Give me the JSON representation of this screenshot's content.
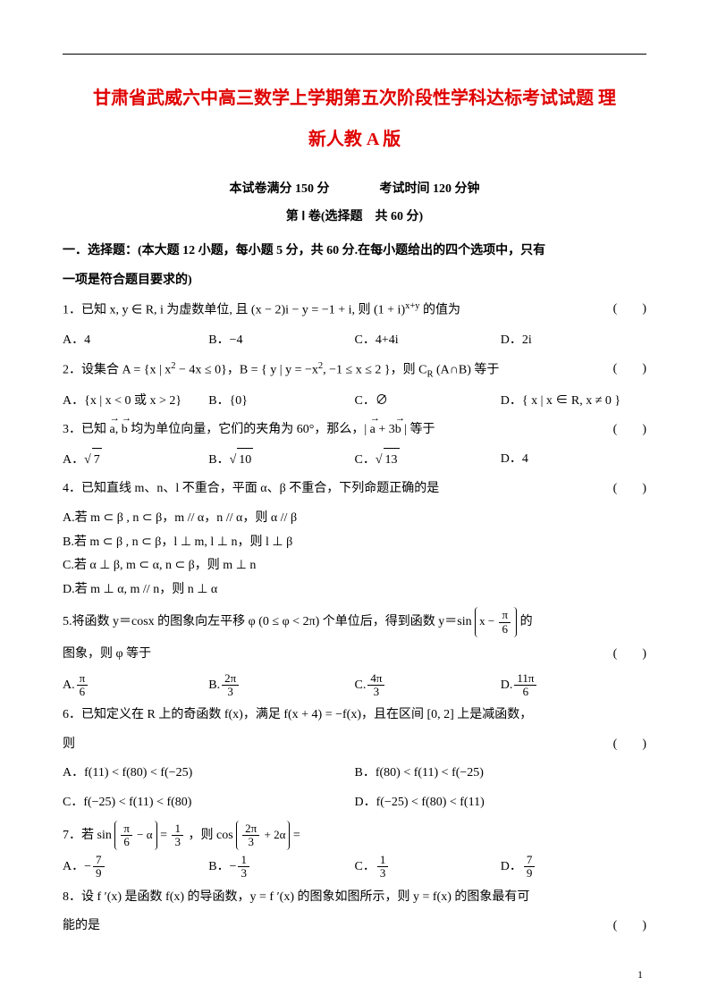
{
  "title": "甘肃省武威六中高三数学上学期第五次阶段性学科达标考试试题 理",
  "subtitle": "新人教 A 版",
  "info": "本试卷满分 150 分　　　　考试时间 120 分钟",
  "part": "第 Ⅰ 卷(选择题　共 60 分)",
  "sectionHeading1": "一．选择题：(本大题 12 小题，每小题 5 分，共 60 分.在每小题给出的四个选项中，只有",
  "sectionHeading2": "一项是符合题目要求的)",
  "paren": "(　　)",
  "q1_stem": "1．已知 x, y ∈ R, i 为虚数单位, 且 (x − 2)i − y = −1 + i, 则 (1 + i)",
  "q1_exp": "x+y",
  "q1_stem_after": " 的值为",
  "q1_A": "A．4",
  "q1_B": "B．−4",
  "q1_C": "C．4+4i",
  "q1_D": "D．2i",
  "q2_stem_a": "2．设集合 A = {x | x",
  "q2_stem_b": " − 4x ≤ 0}，B = { y | y = −x",
  "q2_stem_c": ", −1 ≤ x ≤ 2 }，则 C",
  "q2_sub": "R",
  "q2_stem_d": " (A∩B) 等于",
  "q2_A": "A．{x | x < 0 或 x > 2}",
  "q2_B": "B．{0}",
  "q2_C": "C．∅",
  "q2_D_a": "D．{ x | x ∈ R, x ≠ 0 }",
  "q3_stem_a": "3．已知 ",
  "q3_vec_a": "a",
  "q3_stem_b": ", ",
  "q3_vec_b": "b",
  "q3_stem_c": " 均为单位向量，它们的夹角为 60°，那么，| ",
  "q3_vec_a2": "a",
  "q3_stem_d": " + 3",
  "q3_vec_b2": "b",
  "q3_stem_e": " | 等于",
  "q3_A_pre": "A．√",
  "q3_A_val": "7",
  "q3_B_pre": "B．√",
  "q3_B_val": "10",
  "q3_C_pre": "C．√",
  "q3_C_val": "13",
  "q3_D": "D．4",
  "q4_stem": "4．已知直线 m、n、l 不重合，平面 α、β 不重合，下列命题正确的是",
  "q4_A": "A.若 m ⊂ β , n ⊂ β，m // α，n // α，则 α // β",
  "q4_B": "B.若 m ⊂ β , n ⊂ β，l ⊥ m, l ⊥ n，则 l ⊥ β",
  "q4_C": "C.若 α ⊥ β, m ⊂ α, n ⊂ β，则 m ⊥ n",
  "q4_D": "D.若 m ⊥ α, m // n，则 n ⊥ α",
  "q5_stem_a": "5.将函数 y＝cosx 的图象向左平移 φ (0 ≤ φ < 2π) 个单位后，得到函数 y＝sin",
  "q5_box_top": "x − ",
  "q5_box_num": "π",
  "q5_box_den": "6",
  "q5_stem_b": "的",
  "q5_line2": "图象，则 φ 等于",
  "q5_A_pre": "A.",
  "q5_A_num": "π",
  "q5_A_den": "6",
  "q5_B_pre": "B.",
  "q5_B_num": "2π",
  "q5_B_den": "3",
  "q5_C_pre": "C.",
  "q5_C_num": "4π",
  "q5_C_den": "3",
  "q5_D_pre": "D.",
  "q5_D_num": "11π",
  "q5_D_den": "6",
  "q6_stem": "6．已知定义在 R 上的奇函数 f(x)，满足 f(x + 4) = −f(x)，且在区间 [0, 2] 上是减函数，",
  "q6_line2": "则",
  "q6_A": "A．f(11) < f(80) < f(−25)",
  "q6_B": "B．f(80) < f(11) < f(−25)",
  "q6_C": "C．f(−25) < f(11) < f(80)",
  "q6_D": "D．f(−25) < f(80) < f(11)",
  "q7_pre": "7．若 sin",
  "q7_lp_num": "π",
  "q7_lp_den": "6",
  "q7_mid1": " − α",
  "q7_eq": " = ",
  "q7_rhs_num": "1",
  "q7_rhs_den": "3",
  "q7_mid2": "，则 cos",
  "q7_rp_num": "2π",
  "q7_rp_den": "3",
  "q7_mid3": " + 2α",
  "q7_end": " =",
  "q7_A_pre": "A．−",
  "q7_A_num": "7",
  "q7_A_den": "9",
  "q7_B_pre": "B．−",
  "q7_B_num": "1",
  "q7_B_den": "3",
  "q7_C_pre": "C．",
  "q7_C_num": "1",
  "q7_C_den": "3",
  "q7_D_pre": "D．",
  "q7_D_num": "7",
  "q7_D_den": "9",
  "q8_stem": "8．设 f ′(x) 是函数 f(x) 的导函数，y = f ′(x) 的图象如图所示，则 y = f(x) 的图象最有可",
  "q8_line2": "能的是",
  "pageNum": "1"
}
